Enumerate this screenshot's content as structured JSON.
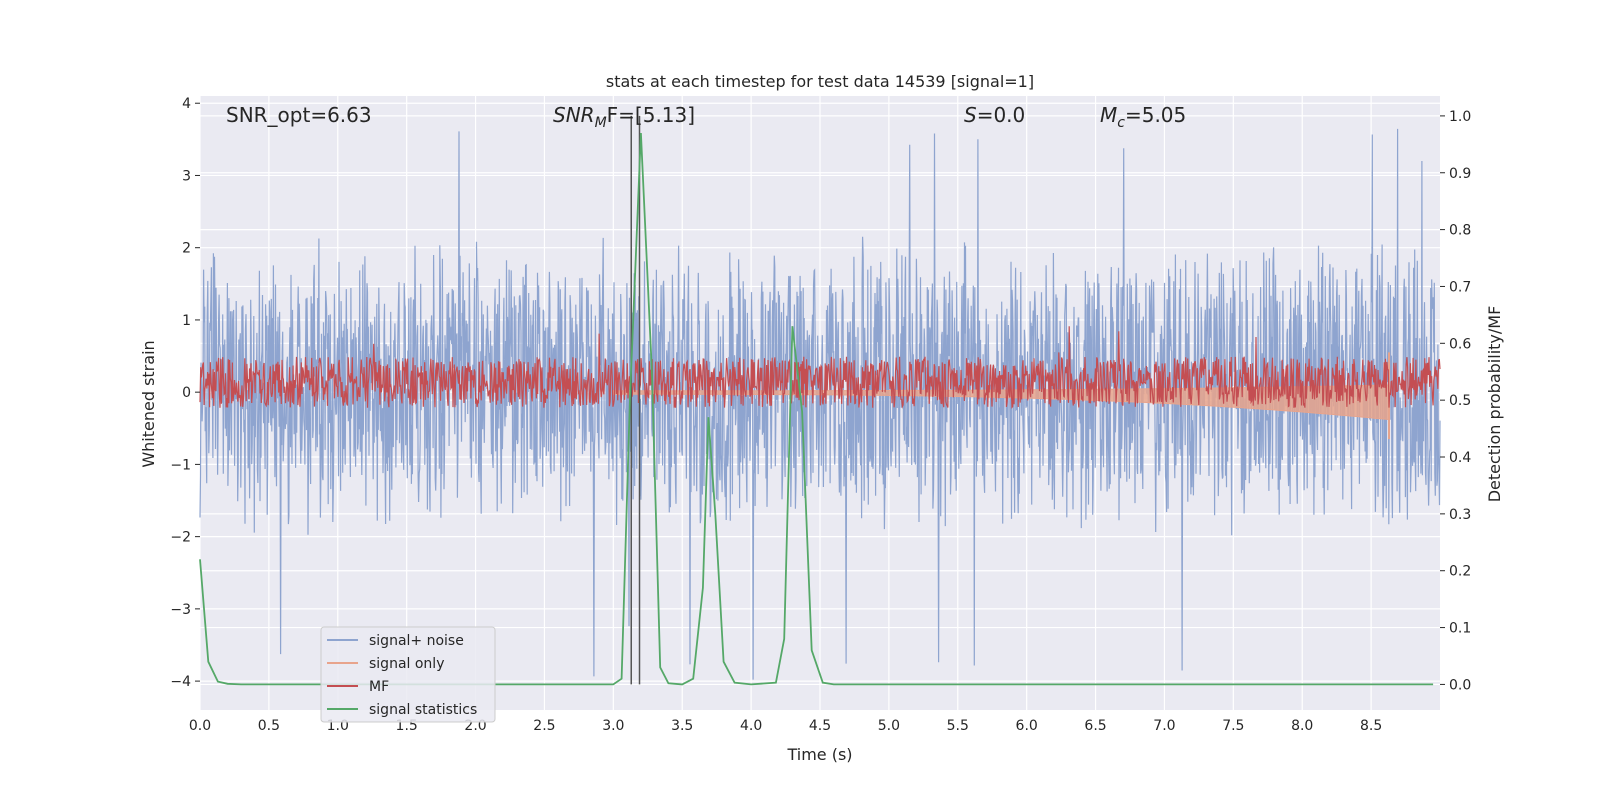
{
  "chart_data": {
    "type": "line",
    "title": "stats at each timestep for test data 14539 [signal=1]",
    "xlabel": "Time (s)",
    "ylabel_left": "Whitened strain",
    "ylabel_right": "Detection probability/MF",
    "xlim": [
      0.0,
      9.0
    ],
    "ylim_left": [
      -4.4,
      4.1
    ],
    "ylim_right": [
      -0.045,
      1.035
    ],
    "x_ticks": [
      "0.0",
      "0.5",
      "1.0",
      "1.5",
      "2.0",
      "2.5",
      "3.0",
      "3.5",
      "4.0",
      "4.5",
      "5.0",
      "5.5",
      "6.0",
      "6.5",
      "7.0",
      "7.5",
      "8.0",
      "8.5"
    ],
    "y_left_ticks": [
      "4",
      "3",
      "2",
      "1",
      "0",
      "−1",
      "−2",
      "−3",
      "−4"
    ],
    "y_right_ticks": [
      "1.0",
      "0.9",
      "0.8",
      "0.7",
      "0.6",
      "0.5",
      "0.4",
      "0.3",
      "0.2",
      "0.1",
      "0.0"
    ],
    "annotations": [
      {
        "base": "SNR_opt=6.63",
        "sub": "",
        "rest": ""
      },
      {
        "base": "SNR",
        "sub": "M",
        "rest": "F=[5.13]"
      },
      {
        "base": "S",
        "sub": "",
        "rest": "=0.0"
      },
      {
        "base": "M",
        "sub": "c",
        "rest": "=5.05"
      }
    ],
    "vlines": [
      3.13,
      3.19
    ],
    "noise_envelope": {
      "typical_upper": 2.2,
      "typical_lower": -2.0,
      "peak_max": 3.7,
      "peak_min": -4.0
    },
    "signal_only": {
      "start": 3.0,
      "end": 8.63,
      "final_min": -0.65,
      "final_max": 0.55
    },
    "mf_band": {
      "mean": 0.22,
      "amplitude": 0.3,
      "spike_max": 0.95
    },
    "series": [
      {
        "name": "signal+ noise",
        "color": "#8ea4cf"
      },
      {
        "name": "signal only",
        "color": "#e8a48c"
      },
      {
        "name": "MF",
        "color": "#c44e52"
      },
      {
        "name": "signal statistics",
        "color": "#55a868",
        "points": [
          [
            0.0,
            0.22
          ],
          [
            0.06,
            0.04
          ],
          [
            0.13,
            0.005
          ],
          [
            0.2,
            0.001
          ],
          [
            0.3,
            0.0
          ],
          [
            3.0,
            0.0
          ],
          [
            3.06,
            0.01
          ],
          [
            3.12,
            0.5
          ],
          [
            3.2,
            0.97
          ],
          [
            3.28,
            0.55
          ],
          [
            3.34,
            0.03
          ],
          [
            3.4,
            0.002
          ],
          [
            3.5,
            0.0
          ],
          [
            3.58,
            0.01
          ],
          [
            3.65,
            0.17
          ],
          [
            3.69,
            0.47
          ],
          [
            3.74,
            0.3
          ],
          [
            3.8,
            0.04
          ],
          [
            3.88,
            0.003
          ],
          [
            4.0,
            0.0
          ],
          [
            4.18,
            0.003
          ],
          [
            4.24,
            0.08
          ],
          [
            4.3,
            0.63
          ],
          [
            4.37,
            0.48
          ],
          [
            4.44,
            0.06
          ],
          [
            4.52,
            0.003
          ],
          [
            4.6,
            0.0
          ],
          [
            8.95,
            0.0
          ]
        ]
      }
    ],
    "legend_position": "lower-left"
  }
}
